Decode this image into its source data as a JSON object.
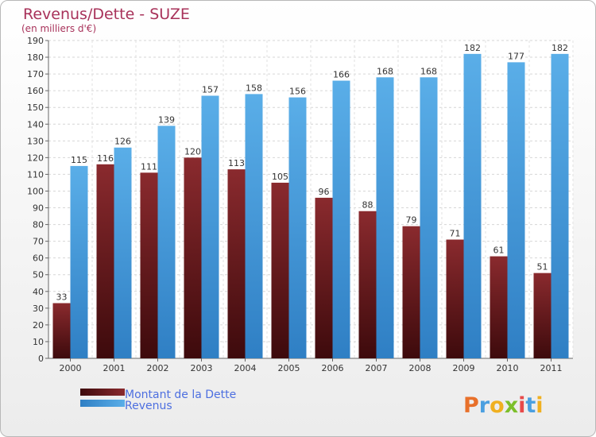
{
  "chart_data": {
    "type": "bar",
    "title": "Revenus/Dette - SUZE",
    "subtitle": "(en milliers d'€)",
    "categories": [
      "2000",
      "2001",
      "2002",
      "2003",
      "2004",
      "2005",
      "2006",
      "2007",
      "2008",
      "2009",
      "2010",
      "2011"
    ],
    "series": [
      {
        "name": "Montant de la Dette",
        "color": "#7a1f24",
        "values": [
          33,
          116,
          111,
          120,
          113,
          105,
          96,
          88,
          79,
          71,
          61,
          51
        ]
      },
      {
        "name": "Revenus",
        "color": "#4a9fe0",
        "values": [
          115,
          126,
          139,
          157,
          158,
          156,
          166,
          168,
          168,
          182,
          177,
          182
        ]
      }
    ],
    "ylim": [
      0,
      190
    ],
    "yticks": [
      0,
      10,
      20,
      30,
      40,
      50,
      60,
      70,
      80,
      90,
      100,
      110,
      120,
      130,
      140,
      150,
      160,
      170,
      180,
      190
    ],
    "grid": true,
    "legend": "bottom-left"
  },
  "logo": {
    "text": "Proxiti",
    "letter_colors": [
      "#e8702a",
      "#4a9fe0",
      "#f0b020",
      "#7cbf2a",
      "#e84a4a",
      "#4a9fe0",
      "#f0b020"
    ]
  }
}
